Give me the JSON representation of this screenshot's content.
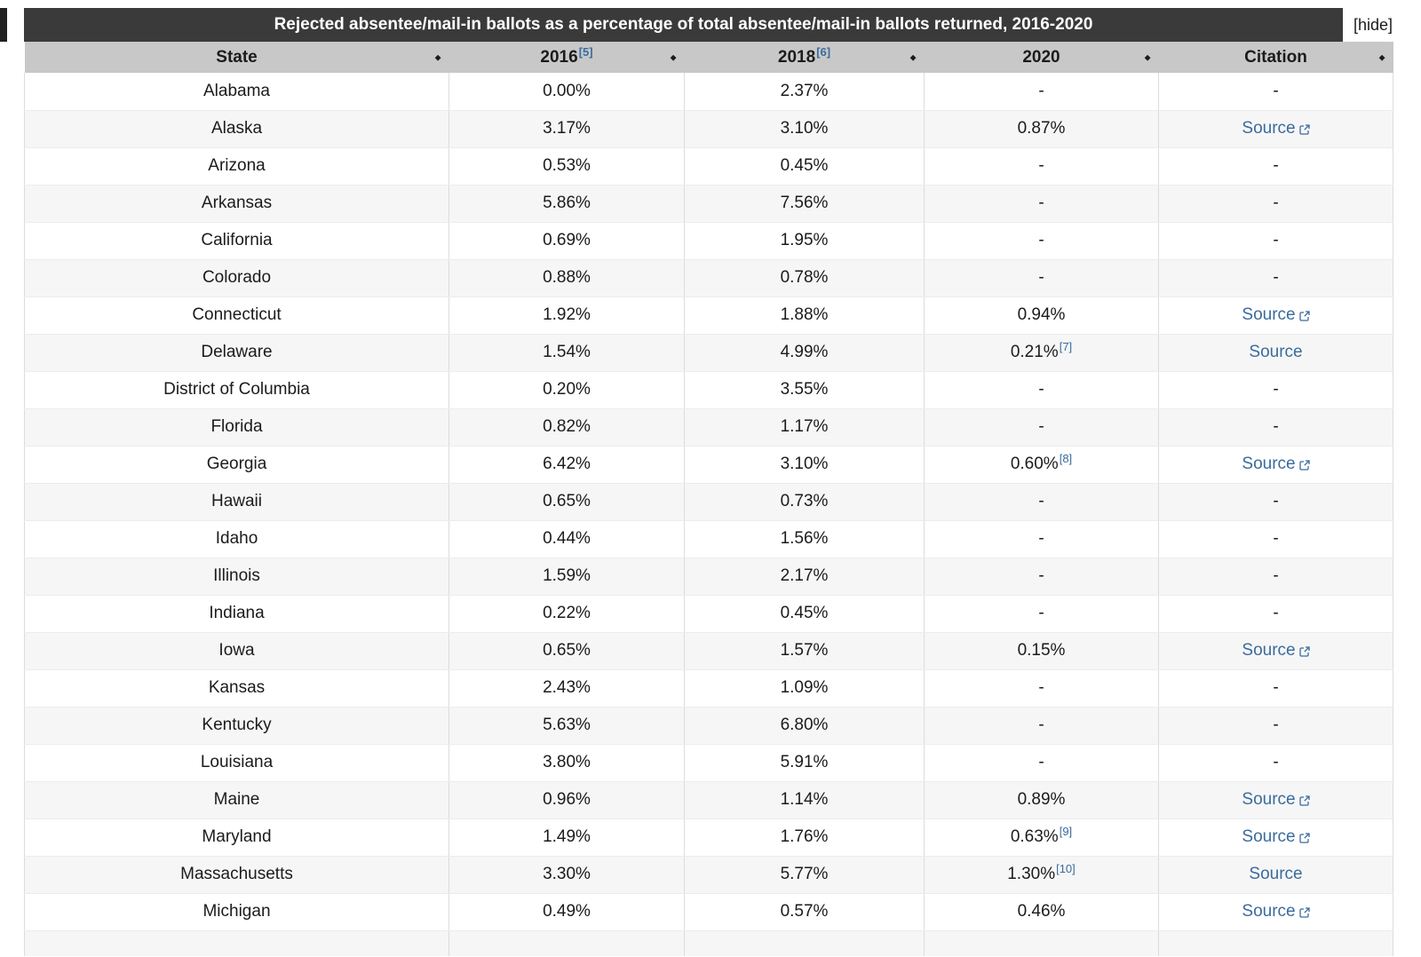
{
  "colors": {
    "title_bar_bg": "#3a3a3a",
    "title_text": "#ffffff",
    "header_bg": "#c8c8c8",
    "link": "#3a6b9e",
    "text": "#1b1b1b",
    "row_stripe": "#f6f6f6"
  },
  "icons": {
    "sort_glyph": "◆"
  },
  "table": {
    "title": "Rejected absentee/mail-in ballots as a percentage of total absentee/mail-in ballots returned, 2016-2020",
    "hide_label": "[hide]",
    "columns": [
      {
        "key": "state",
        "label": "State",
        "ref": ""
      },
      {
        "key": "2016",
        "label": "2016",
        "ref": "[5]"
      },
      {
        "key": "2018",
        "label": "2018",
        "ref": "[6]"
      },
      {
        "key": "2020",
        "label": "2020",
        "ref": ""
      },
      {
        "key": "citation",
        "label": "Citation",
        "ref": ""
      }
    ],
    "rows": [
      {
        "state": "Alabama",
        "v2016": "0.00%",
        "v2018": "2.37%",
        "v2020": "-",
        "ref2020": "",
        "citation": "-",
        "external": false
      },
      {
        "state": "Alaska",
        "v2016": "3.17%",
        "v2018": "3.10%",
        "v2020": "0.87%",
        "ref2020": "",
        "citation": "Source",
        "external": true
      },
      {
        "state": "Arizona",
        "v2016": "0.53%",
        "v2018": "0.45%",
        "v2020": "-",
        "ref2020": "",
        "citation": "-",
        "external": false
      },
      {
        "state": "Arkansas",
        "v2016": "5.86%",
        "v2018": "7.56%",
        "v2020": "-",
        "ref2020": "",
        "citation": "-",
        "external": false
      },
      {
        "state": "California",
        "v2016": "0.69%",
        "v2018": "1.95%",
        "v2020": "-",
        "ref2020": "",
        "citation": "-",
        "external": false
      },
      {
        "state": "Colorado",
        "v2016": "0.88%",
        "v2018": "0.78%",
        "v2020": "-",
        "ref2020": "",
        "citation": "-",
        "external": false
      },
      {
        "state": "Connecticut",
        "v2016": "1.92%",
        "v2018": "1.88%",
        "v2020": "0.94%",
        "ref2020": "",
        "citation": "Source",
        "external": true
      },
      {
        "state": "Delaware",
        "v2016": "1.54%",
        "v2018": "4.99%",
        "v2020": "0.21%",
        "ref2020": "[7]",
        "citation": "Source",
        "external": false
      },
      {
        "state": "District of Columbia",
        "v2016": "0.20%",
        "v2018": "3.55%",
        "v2020": "-",
        "ref2020": "",
        "citation": "-",
        "external": false
      },
      {
        "state": "Florida",
        "v2016": "0.82%",
        "v2018": "1.17%",
        "v2020": "-",
        "ref2020": "",
        "citation": "-",
        "external": false
      },
      {
        "state": "Georgia",
        "v2016": "6.42%",
        "v2018": "3.10%",
        "v2020": "0.60%",
        "ref2020": "[8]",
        "citation": "Source",
        "external": true
      },
      {
        "state": "Hawaii",
        "v2016": "0.65%",
        "v2018": "0.73%",
        "v2020": "-",
        "ref2020": "",
        "citation": "-",
        "external": false
      },
      {
        "state": "Idaho",
        "v2016": "0.44%",
        "v2018": "1.56%",
        "v2020": "-",
        "ref2020": "",
        "citation": "-",
        "external": false
      },
      {
        "state": "Illinois",
        "v2016": "1.59%",
        "v2018": "2.17%",
        "v2020": "-",
        "ref2020": "",
        "citation": "-",
        "external": false
      },
      {
        "state": "Indiana",
        "v2016": "0.22%",
        "v2018": "0.45%",
        "v2020": "-",
        "ref2020": "",
        "citation": "-",
        "external": false
      },
      {
        "state": "Iowa",
        "v2016": "0.65%",
        "v2018": "1.57%",
        "v2020": "0.15%",
        "ref2020": "",
        "citation": "Source",
        "external": true
      },
      {
        "state": "Kansas",
        "v2016": "2.43%",
        "v2018": "1.09%",
        "v2020": "-",
        "ref2020": "",
        "citation": "-",
        "external": false
      },
      {
        "state": "Kentucky",
        "v2016": "5.63%",
        "v2018": "6.80%",
        "v2020": "-",
        "ref2020": "",
        "citation": "-",
        "external": false
      },
      {
        "state": "Louisiana",
        "v2016": "3.80%",
        "v2018": "5.91%",
        "v2020": "-",
        "ref2020": "",
        "citation": "-",
        "external": false
      },
      {
        "state": "Maine",
        "v2016": "0.96%",
        "v2018": "1.14%",
        "v2020": "0.89%",
        "ref2020": "",
        "citation": "Source",
        "external": true
      },
      {
        "state": "Maryland",
        "v2016": "1.49%",
        "v2018": "1.76%",
        "v2020": "0.63%",
        "ref2020": "[9]",
        "citation": "Source",
        "external": true
      },
      {
        "state": "Massachusetts",
        "v2016": "3.30%",
        "v2018": "5.77%",
        "v2020": "1.30%",
        "ref2020": "[10]",
        "citation": "Source",
        "external": false
      },
      {
        "state": "Michigan",
        "v2016": "0.49%",
        "v2018": "0.57%",
        "v2020": "0.46%",
        "ref2020": "",
        "citation": "Source",
        "external": true
      }
    ]
  }
}
